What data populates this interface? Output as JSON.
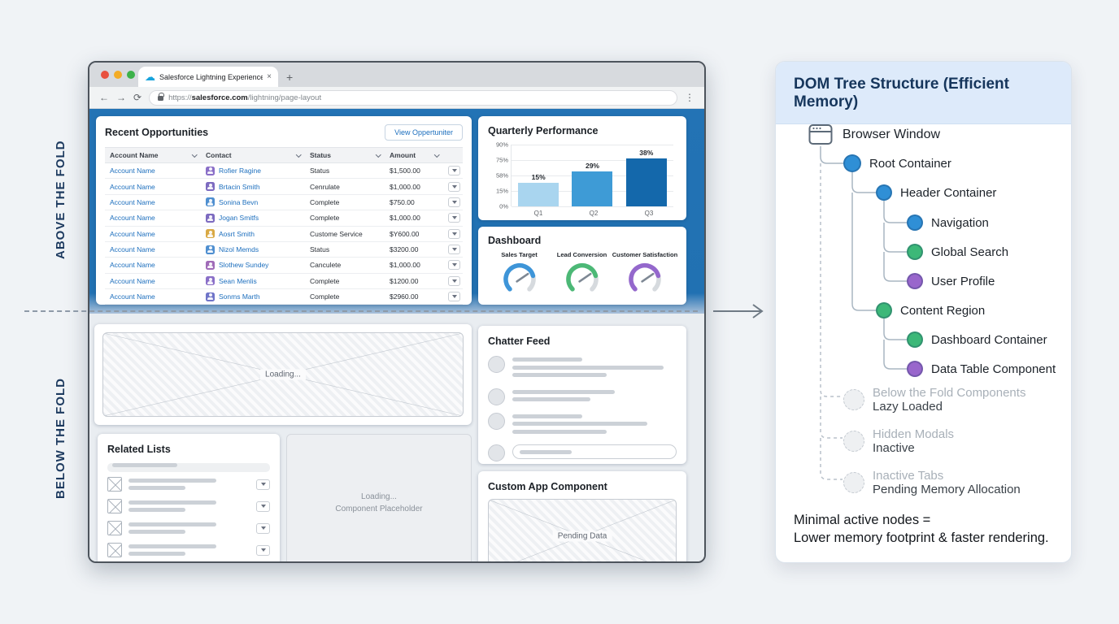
{
  "page": {
    "above_fold_label": "ABOVE THE FOLD",
    "below_fold_label": "BELOW THE FOLD"
  },
  "browser_chrome": {
    "tab_title": "Salesforce Lightning Experience",
    "tab_close_label": "×",
    "new_tab_label": "+",
    "back_icon": "←",
    "forward_icon": "→",
    "refresh_icon": "⟳",
    "menu_icon": "⋮",
    "favicon_cloud": "☁",
    "favicon_color": "#17a3dc",
    "url_prefix": "https://",
    "url_domain": "salesforce.com",
    "url_path": "/lightning/page-layout"
  },
  "opportunities": {
    "title": "Recent Opportunities",
    "view_button_label": "View Oppertuniter",
    "columns": [
      "Account Name",
      "Contact",
      "Status",
      "Amount"
    ],
    "rows": [
      {
        "account": "Account Name",
        "contact": "Rofier Ragine",
        "contact_color": "#8a6fc8",
        "status": "Status",
        "amount": "$1,500.00"
      },
      {
        "account": "Account Name",
        "contact": "Brtacin Smith",
        "contact_color": "#7d6bc0",
        "status": "Cenrulate",
        "amount": "$1,000.00"
      },
      {
        "account": "Account Name",
        "contact": "Sonina Bevn",
        "contact_color": "#4f8fd0",
        "status": "Complete",
        "amount": "$750.00"
      },
      {
        "account": "Account Name",
        "contact": "Jogan Smitfs",
        "contact_color": "#7d6bc0",
        "status": "Complete",
        "amount": "$1,000.00"
      },
      {
        "account": "Account Name",
        "contact": "Aosrt Smith",
        "contact_color": "#d9a944",
        "status": "Custome Service",
        "amount": "$Y600.00"
      },
      {
        "account": "Account Name",
        "contact": "Nizol Memds",
        "contact_color": "#4f8fd0",
        "status": "Status",
        "amount": "$3200.00"
      },
      {
        "account": "Account Name",
        "contact": "Slothew Sundey",
        "contact_color": "#a06bb8",
        "status": "Canculete",
        "amount": "$1,000.00"
      },
      {
        "account": "Account Name",
        "contact": "Sean Menlis",
        "contact_color": "#8a6fc8",
        "status": "Complete",
        "amount": "$1200.00"
      },
      {
        "account": "Account Name",
        "contact": "Sonms Marth",
        "contact_color": "#6f74c8",
        "status": "Complete",
        "amount": "$2960.00"
      }
    ]
  },
  "chart_data": {
    "type": "bar",
    "title": "Quarterly Performance",
    "categories": [
      "Q1",
      "Q2",
      "Q3"
    ],
    "values": [
      15,
      29,
      38
    ],
    "value_labels": [
      "15%",
      "29%",
      "38%"
    ],
    "y_tick_labels": [
      "90%",
      "75%",
      "58%",
      "15%",
      "0%"
    ],
    "bar_colors": [
      "#a9d5ef",
      "#3e9bd6",
      "#1468ab"
    ],
    "bar_display_heights_pct": [
      38,
      57,
      78
    ],
    "xlabel": "",
    "ylabel": "",
    "grid": true,
    "legend": false
  },
  "dashboard": {
    "title": "Dashboard",
    "gauges": [
      {
        "label": "Sales Target",
        "color": "#3e95d8"
      },
      {
        "label": "Lead Conversion",
        "color": "#4cb876"
      },
      {
        "label": "Customer Satisfaction",
        "color": "#9468cc"
      }
    ]
  },
  "loading_card": {
    "label": "Loading..."
  },
  "related_lists": {
    "title": "Related Lists"
  },
  "component_placeholder": {
    "line1": "Loading...",
    "line2": "Component Placeholder"
  },
  "chatter": {
    "title": "Chatter Feed"
  },
  "custom_app": {
    "title": "Custom App Component",
    "placeholder_label": "Pending Data"
  },
  "dom_panel": {
    "title": "DOM Tree Structure (Efficient Memory)",
    "root_label": "Browser Window",
    "nodes": [
      {
        "label": "Root Container",
        "color": "#2f8fd6",
        "kind": "active",
        "size": 22
      },
      {
        "label": "Header Container",
        "color": "#2f8fd6",
        "kind": "active",
        "size": 20
      },
      {
        "label": "Navigation",
        "color": "#2f8fd6",
        "kind": "active",
        "size": 20
      },
      {
        "label": "Global Search",
        "color": "#3cb878",
        "kind": "active",
        "size": 20
      },
      {
        "label": "User Profile",
        "color": "#9966cc",
        "kind": "active",
        "size": 20
      },
      {
        "label": "Content Region",
        "color": "#3cb878",
        "kind": "active",
        "size": 20
      },
      {
        "label": "Dashboard Container",
        "color": "#3cb878",
        "kind": "active",
        "size": 20
      },
      {
        "label": "Data Table Component",
        "color": "#9966cc",
        "kind": "active",
        "size": 20
      },
      {
        "label": "Below the Fold Components",
        "sublabel": "Lazy Loaded",
        "kind": "ghost",
        "size": 26
      },
      {
        "label": "Hidden Modals",
        "sublabel": "Inactive",
        "kind": "ghost",
        "size": 26
      },
      {
        "label": "Inactive Tabs",
        "sublabel": "Pending Memory Allocation",
        "kind": "ghost",
        "size": 26
      }
    ],
    "footer_line1": "Minimal active nodes =",
    "footer_line2": "Lower memory footprint & faster rendering."
  }
}
